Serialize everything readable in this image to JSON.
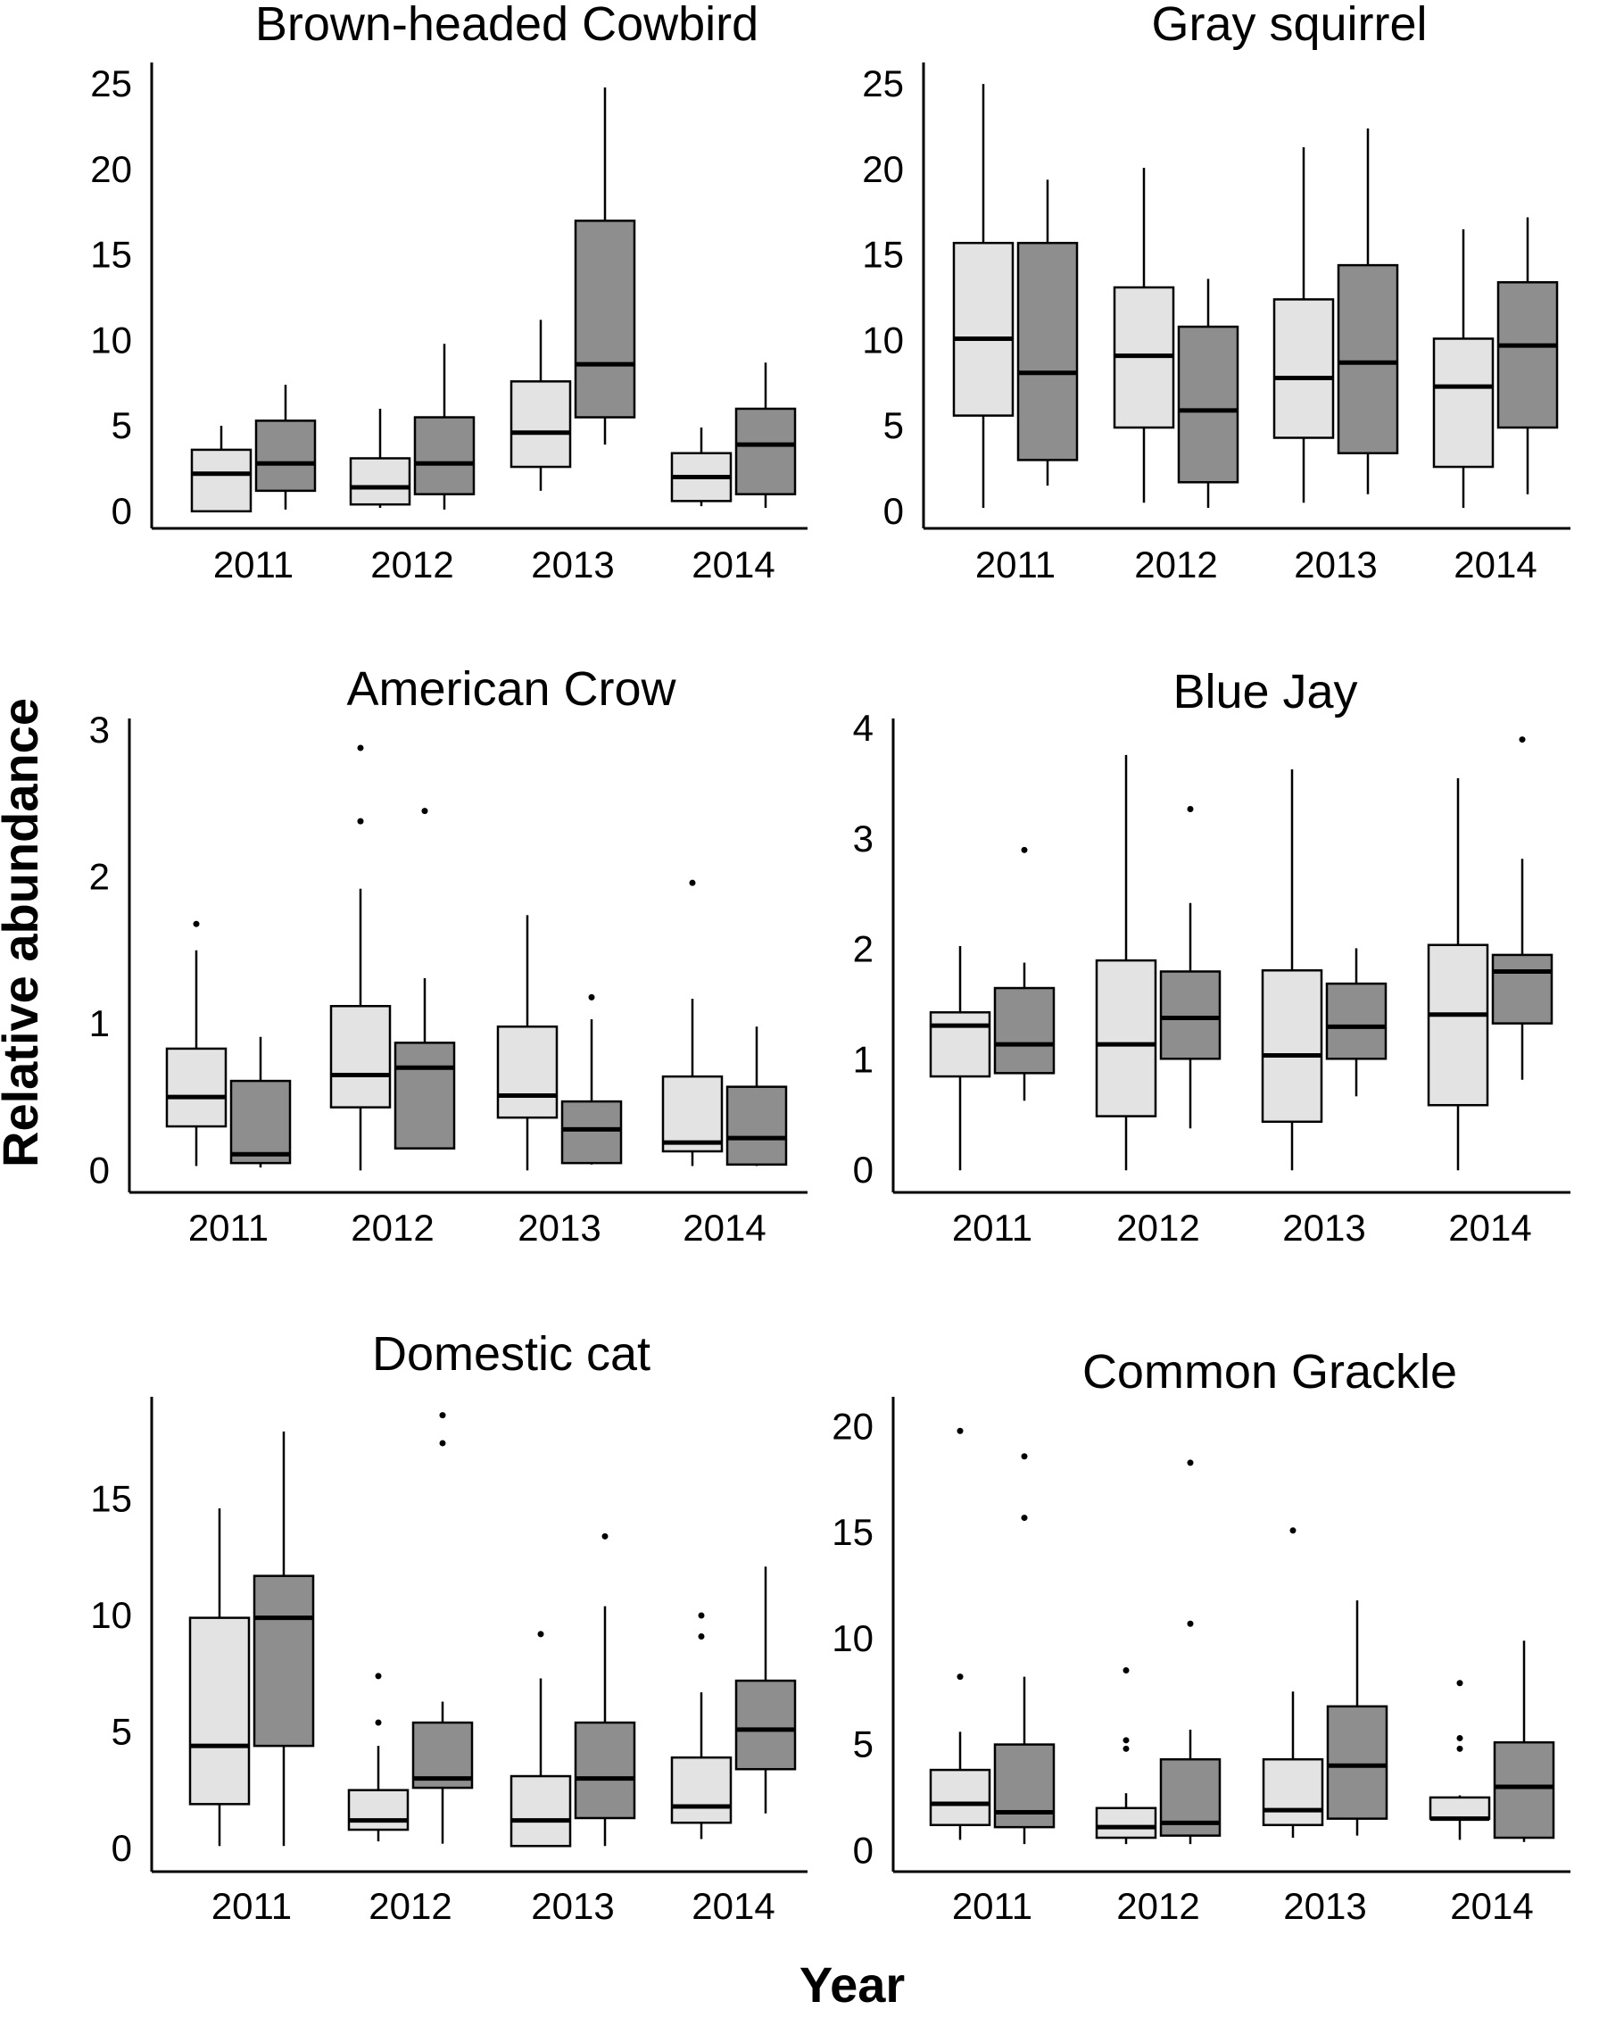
{
  "figure": {
    "ylabel": "Relative abundance",
    "xlabel": "Year",
    "colors": {
      "series_a": "#e3e3e3",
      "series_b": "#8e8e8e"
    }
  },
  "chart_data": [
    {
      "type": "boxplot",
      "title": "Brown-headed Cowbird",
      "categories": [
        "2011",
        "2012",
        "2013",
        "2014"
      ],
      "yticks": [
        0,
        5,
        10,
        15,
        20,
        25
      ],
      "ylim": [
        -1,
        26
      ],
      "series": [
        {
          "color": "#e3e3e3",
          "boxes": [
            {
              "min": 0,
              "q1": 0,
              "median": 2.2,
              "q3": 3.6,
              "max": 5,
              "outliers": []
            },
            {
              "min": 0.2,
              "q1": 0.4,
              "median": 1.4,
              "q3": 3.1,
              "max": 6,
              "outliers": []
            },
            {
              "min": 1.2,
              "q1": 2.6,
              "median": 4.6,
              "q3": 7.6,
              "max": 11.2,
              "outliers": []
            },
            {
              "min": 0.3,
              "q1": 0.6,
              "median": 2,
              "q3": 3.4,
              "max": 4.9,
              "outliers": []
            }
          ]
        },
        {
          "color": "#8e8e8e",
          "boxes": [
            {
              "min": 0.1,
              "q1": 1.2,
              "median": 2.8,
              "q3": 5.3,
              "max": 7.4,
              "outliers": []
            },
            {
              "min": 0.1,
              "q1": 1,
              "median": 2.8,
              "q3": 5.5,
              "max": 9.8,
              "outliers": []
            },
            {
              "min": 3.9,
              "q1": 5.5,
              "median": 8.6,
              "q3": 17,
              "max": 24.8,
              "outliers": []
            },
            {
              "min": 0.2,
              "q1": 1,
              "median": 3.9,
              "q3": 6,
              "max": 8.7,
              "outliers": []
            }
          ]
        }
      ]
    },
    {
      "type": "boxplot",
      "title": "Gray squirrel",
      "categories": [
        "2011",
        "2012",
        "2013",
        "2014"
      ],
      "yticks": [
        0,
        5,
        10,
        15,
        20,
        25
      ],
      "ylim": [
        -1,
        26
      ],
      "series": [
        {
          "color": "#e3e3e3",
          "boxes": [
            {
              "min": 0.2,
              "q1": 5.6,
              "median": 10.1,
              "q3": 15.7,
              "max": 25,
              "outliers": []
            },
            {
              "min": 0.5,
              "q1": 4.9,
              "median": 9.1,
              "q3": 13.1,
              "max": 20.1,
              "outliers": []
            },
            {
              "min": 0.5,
              "q1": 4.3,
              "median": 7.8,
              "q3": 12.4,
              "max": 21.3,
              "outliers": []
            },
            {
              "min": 0.2,
              "q1": 2.6,
              "median": 7.3,
              "q3": 10.1,
              "max": 16.5,
              "outliers": []
            }
          ]
        },
        {
          "color": "#8e8e8e",
          "boxes": [
            {
              "min": 1.5,
              "q1": 3,
              "median": 8.1,
              "q3": 15.7,
              "max": 19.4,
              "outliers": []
            },
            {
              "min": 0.2,
              "q1": 1.7,
              "median": 5.9,
              "q3": 10.8,
              "max": 13.6,
              "outliers": []
            },
            {
              "min": 1,
              "q1": 3.4,
              "median": 8.7,
              "q3": 14.4,
              "max": 22.4,
              "outliers": []
            },
            {
              "min": 1,
              "q1": 4.9,
              "median": 9.7,
              "q3": 13.4,
              "max": 17.2,
              "outliers": []
            }
          ]
        }
      ]
    },
    {
      "type": "boxplot",
      "title": "American Crow",
      "categories": [
        "2011",
        "2012",
        "2013",
        "2014"
      ],
      "yticks": [
        0,
        1,
        2,
        3
      ],
      "ylim": [
        -0.15,
        3.05
      ],
      "series": [
        {
          "color": "#e3e3e3",
          "boxes": [
            {
              "min": 0.03,
              "q1": 0.3,
              "median": 0.5,
              "q3": 0.83,
              "max": 1.5,
              "outliers": [
                1.68
              ]
            },
            {
              "min": 0,
              "q1": 0.43,
              "median": 0.65,
              "q3": 1.12,
              "max": 1.92,
              "outliers": [
                2.38,
                2.88
              ]
            },
            {
              "min": 0,
              "q1": 0.36,
              "median": 0.51,
              "q3": 0.98,
              "max": 1.74,
              "outliers": []
            },
            {
              "min": 0.03,
              "q1": 0.13,
              "median": 0.19,
              "q3": 0.64,
              "max": 1.17,
              "outliers": [
                1.96
              ]
            }
          ]
        },
        {
          "color": "#8e8e8e",
          "boxes": [
            {
              "min": 0.02,
              "q1": 0.05,
              "median": 0.11,
              "q3": 0.61,
              "max": 0.91,
              "outliers": []
            },
            {
              "min": 0.15,
              "q1": 0.15,
              "median": 0.7,
              "q3": 0.87,
              "max": 1.31,
              "outliers": [
                2.45
              ]
            },
            {
              "min": 0.04,
              "q1": 0.05,
              "median": 0.28,
              "q3": 0.47,
              "max": 1.03,
              "outliers": [
                1.18
              ]
            },
            {
              "min": 0.03,
              "q1": 0.04,
              "median": 0.22,
              "q3": 0.57,
              "max": 0.98,
              "outliers": []
            }
          ]
        }
      ]
    },
    {
      "type": "boxplot",
      "title": "Blue Jay",
      "categories": [
        "2011",
        "2012",
        "2013",
        "2014"
      ],
      "yticks": [
        0,
        1,
        2,
        3,
        4
      ],
      "ylim": [
        -0.2,
        4.05
      ],
      "series": [
        {
          "color": "#e3e3e3",
          "boxes": [
            {
              "min": 0,
              "q1": 0.85,
              "median": 1.31,
              "q3": 1.43,
              "max": 2.03,
              "outliers": []
            },
            {
              "min": 0,
              "q1": 0.49,
              "median": 1.14,
              "q3": 1.9,
              "max": 3.76,
              "outliers": []
            },
            {
              "min": 0,
              "q1": 0.44,
              "median": 1.04,
              "q3": 1.81,
              "max": 3.63,
              "outliers": []
            },
            {
              "min": 0,
              "q1": 0.59,
              "median": 1.41,
              "q3": 2.04,
              "max": 3.55,
              "outliers": []
            }
          ]
        },
        {
          "color": "#8e8e8e",
          "boxes": [
            {
              "min": 0.63,
              "q1": 0.88,
              "median": 1.14,
              "q3": 1.65,
              "max": 1.88,
              "outliers": [
                2.9
              ]
            },
            {
              "min": 0.38,
              "q1": 1.01,
              "median": 1.38,
              "q3": 1.8,
              "max": 2.42,
              "outliers": [
                3.27
              ]
            },
            {
              "min": 0.67,
              "q1": 1.01,
              "median": 1.3,
              "q3": 1.69,
              "max": 2.01,
              "outliers": []
            },
            {
              "min": 0.82,
              "q1": 1.33,
              "median": 1.8,
              "q3": 1.95,
              "max": 2.82,
              "outliers": [
                3.9
              ]
            }
          ]
        }
      ]
    },
    {
      "type": "boxplot",
      "title": "Domestic cat",
      "categories": [
        "2011",
        "2012",
        "2013",
        "2014"
      ],
      "yticks": [
        0,
        5,
        10,
        15
      ],
      "ylim": [
        -1,
        19.2
      ],
      "series": [
        {
          "color": "#e3e3e3",
          "boxes": [
            {
              "min": 0.1,
              "q1": 1.9,
              "median": 4.4,
              "q3": 9.9,
              "max": 14.6,
              "outliers": []
            },
            {
              "min": 0.3,
              "q1": 0.8,
              "median": 1.2,
              "q3": 2.5,
              "max": 4.4,
              "outliers": [
                5.4,
                7.4
              ]
            },
            {
              "min": 0.1,
              "q1": 0.1,
              "median": 1.2,
              "q3": 3.1,
              "max": 7.3,
              "outliers": [
                9.2
              ]
            },
            {
              "min": 0.4,
              "q1": 1.1,
              "median": 1.8,
              "q3": 3.9,
              "max": 6.7,
              "outliers": [
                9.1,
                10
              ]
            }
          ]
        },
        {
          "color": "#8e8e8e",
          "boxes": [
            {
              "min": 0.1,
              "q1": 4.4,
              "median": 9.9,
              "q3": 11.7,
              "max": 17.9,
              "outliers": []
            },
            {
              "min": 0.2,
              "q1": 2.6,
              "median": 3,
              "q3": 5.4,
              "max": 6.3,
              "outliers": [
                17.4,
                18.6
              ]
            },
            {
              "min": 0.1,
              "q1": 1.3,
              "median": 3,
              "q3": 5.4,
              "max": 10.4,
              "outliers": [
                13.4
              ]
            },
            {
              "min": 1.5,
              "q1": 3.4,
              "median": 5.1,
              "q3": 7.2,
              "max": 12.1,
              "outliers": []
            }
          ]
        }
      ]
    },
    {
      "type": "boxplot",
      "title": "Common Grackle",
      "categories": [
        "2011",
        "2012",
        "2013",
        "2014"
      ],
      "yticks": [
        0,
        5,
        10,
        15,
        20
      ],
      "ylim": [
        -1,
        21.2
      ],
      "series": [
        {
          "color": "#e3e3e3",
          "boxes": [
            {
              "min": 0.5,
              "q1": 1.2,
              "median": 2.2,
              "q3": 3.8,
              "max": 5.6,
              "outliers": [
                8.2,
                19.8
              ]
            },
            {
              "min": 0.3,
              "q1": 0.6,
              "median": 1.1,
              "q3": 2,
              "max": 2.7,
              "outliers": [
                4.8,
                5.2,
                8.5
              ]
            },
            {
              "min": 0.6,
              "q1": 1.2,
              "median": 1.9,
              "q3": 4.3,
              "max": 7.5,
              "outliers": [
                15.1
              ]
            },
            {
              "min": 0.5,
              "q1": 1.5,
              "median": 1.5,
              "q3": 2.5,
              "max": 2.6,
              "outliers": [
                4.8,
                5.3,
                7.9
              ]
            }
          ]
        },
        {
          "color": "#8e8e8e",
          "boxes": [
            {
              "min": 0.3,
              "q1": 1.1,
              "median": 1.8,
              "q3": 5,
              "max": 8.2,
              "outliers": [
                15.7,
                18.6
              ]
            },
            {
              "min": 0.3,
              "q1": 0.7,
              "median": 1.3,
              "q3": 4.3,
              "max": 5.7,
              "outliers": [
                10.7,
                18.3
              ]
            },
            {
              "min": 0.7,
              "q1": 1.5,
              "median": 4,
              "q3": 6.8,
              "max": 11.8,
              "outliers": []
            },
            {
              "min": 0.4,
              "q1": 0.6,
              "median": 3,
              "q3": 5.1,
              "max": 9.9,
              "outliers": []
            }
          ]
        }
      ]
    }
  ]
}
